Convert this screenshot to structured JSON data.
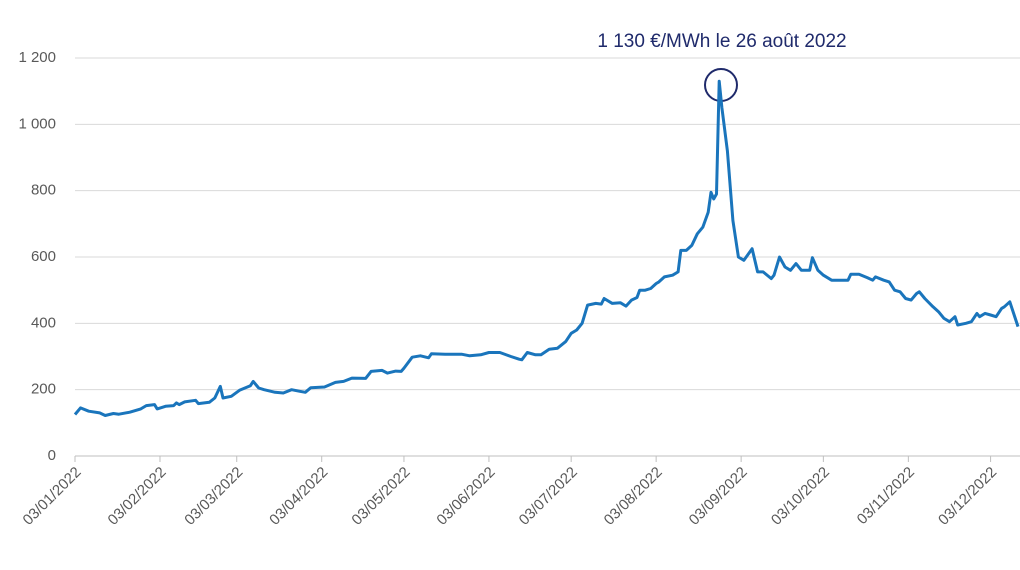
{
  "chart_data": {
    "type": "line",
    "annotation": "1 130 €/MWh le 26 août 2022",
    "x": [
      "2022-01-03",
      "2022-01-05",
      "2022-01-08",
      "2022-01-12",
      "2022-01-14",
      "2022-01-17",
      "2022-01-19",
      "2022-01-23",
      "2022-01-27",
      "2022-01-29",
      "2022-02-01",
      "2022-02-02",
      "2022-02-05",
      "2022-02-08",
      "2022-02-09",
      "2022-02-10",
      "2022-02-12",
      "2022-02-16",
      "2022-02-17",
      "2022-02-21",
      "2022-02-23",
      "2022-02-25",
      "2022-02-26",
      "2022-03-01",
      "2022-03-04",
      "2022-03-08",
      "2022-03-09",
      "2022-03-11",
      "2022-03-13",
      "2022-03-17",
      "2022-03-20",
      "2022-03-23",
      "2022-03-26",
      "2022-03-28",
      "2022-03-30",
      "2022-04-04",
      "2022-04-08",
      "2022-04-11",
      "2022-04-14",
      "2022-04-19",
      "2022-04-21",
      "2022-04-25",
      "2022-04-27",
      "2022-04-30",
      "2022-05-02",
      "2022-05-03",
      "2022-05-06",
      "2022-05-09",
      "2022-05-12",
      "2022-05-13",
      "2022-05-18",
      "2022-05-24",
      "2022-05-27",
      "2022-05-31",
      "2022-06-03",
      "2022-06-07",
      "2022-06-11",
      "2022-06-14",
      "2022-06-15",
      "2022-06-17",
      "2022-06-20",
      "2022-06-22",
      "2022-06-25",
      "2022-06-28",
      "2022-07-01",
      "2022-07-03",
      "2022-07-05",
      "2022-07-07",
      "2022-07-09",
      "2022-07-12",
      "2022-07-14",
      "2022-07-15",
      "2022-07-18",
      "2022-07-21",
      "2022-07-23",
      "2022-07-25",
      "2022-07-27",
      "2022-07-28",
      "2022-07-30",
      "2022-08-01",
      "2022-08-03",
      "2022-08-04",
      "2022-08-06",
      "2022-08-09",
      "2022-08-11",
      "2022-08-12",
      "2022-08-14",
      "2022-08-16",
      "2022-08-18",
      "2022-08-20",
      "2022-08-22",
      "2022-08-23",
      "2022-08-24",
      "2022-08-25",
      "2022-08-26",
      "2022-08-27",
      "2022-08-29",
      "2022-08-31",
      "2022-09-02",
      "2022-09-04",
      "2022-09-07",
      "2022-09-09",
      "2022-09-11",
      "2022-09-14",
      "2022-09-15",
      "2022-09-17",
      "2022-09-19",
      "2022-09-21",
      "2022-09-23",
      "2022-09-25",
      "2022-09-28",
      "2022-09-29",
      "2022-10-01",
      "2022-10-03",
      "2022-10-06",
      "2022-10-09",
      "2022-10-12",
      "2022-10-13",
      "2022-10-16",
      "2022-10-19",
      "2022-10-21",
      "2022-10-22",
      "2022-10-25",
      "2022-10-27",
      "2022-10-29",
      "2022-10-31",
      "2022-11-02",
      "2022-11-04",
      "2022-11-06",
      "2022-11-07",
      "2022-11-09",
      "2022-11-12",
      "2022-11-14",
      "2022-11-16",
      "2022-11-18",
      "2022-11-20",
      "2022-11-21",
      "2022-11-24",
      "2022-11-26",
      "2022-11-28",
      "2022-11-29",
      "2022-12-01",
      "2022-12-03",
      "2022-12-05",
      "2022-12-07",
      "2022-12-08",
      "2022-12-10",
      "2022-12-13"
    ],
    "series": [
      {
        "color": "#1a75bc",
        "values": [
          125,
          145,
          135,
          130,
          122,
          128,
          126,
          132,
          142,
          152,
          155,
          142,
          150,
          152,
          160,
          155,
          163,
          168,
          158,
          162,
          175,
          210,
          175,
          180,
          198,
          212,
          225,
          205,
          200,
          192,
          190,
          200,
          195,
          192,
          206,
          208,
          222,
          225,
          235,
          234,
          255,
          258,
          250,
          256,
          255,
          265,
          298,
          302,
          296,
          308,
          307,
          307,
          302,
          305,
          312,
          312,
          300,
          292,
          290,
          312,
          305,
          305,
          322,
          325,
          345,
          370,
          380,
          400,
          455,
          460,
          458,
          475,
          460,
          462,
          452,
          470,
          478,
          500,
          500,
          505,
          520,
          525,
          540,
          545,
          555,
          620,
          620,
          635,
          670,
          690,
          735,
          795,
          775,
          790,
          1130,
          1050,
          920,
          710,
          600,
          590,
          625,
          555,
          555,
          535,
          545,
          600,
          570,
          560,
          580,
          560,
          560,
          598,
          560,
          545,
          530,
          530,
          530,
          548,
          548,
          538,
          530,
          540,
          530,
          525,
          500,
          495,
          475,
          470,
          490,
          495,
          475,
          450,
          435,
          415,
          405,
          420,
          395,
          400,
          405,
          430,
          420,
          430,
          425,
          420,
          445,
          450,
          465,
          390
        ]
      }
    ],
    "xlim": [
      "2022-01-03",
      "2022-12-13"
    ],
    "xticks": [
      {
        "value": "2022-01-03",
        "label": "03/01/2022"
      },
      {
        "value": "2022-02-03",
        "label": "03/02/2022"
      },
      {
        "value": "2022-03-03",
        "label": "03/03/2022"
      },
      {
        "value": "2022-04-03",
        "label": "03/04/2022"
      },
      {
        "value": "2022-05-03",
        "label": "03/05/2022"
      },
      {
        "value": "2022-06-03",
        "label": "03/06/2022"
      },
      {
        "value": "2022-07-03",
        "label": "03/07/2022"
      },
      {
        "value": "2022-08-03",
        "label": "03/08/2022"
      },
      {
        "value": "2022-09-03",
        "label": "03/09/2022"
      },
      {
        "value": "2022-10-03",
        "label": "03/10/2022"
      },
      {
        "value": "2022-11-03",
        "label": "03/11/2022"
      },
      {
        "value": "2022-12-03",
        "label": "03/12/2022"
      }
    ],
    "ylim": [
      0,
      1200
    ],
    "yticks": [
      0,
      200,
      400,
      600,
      800,
      {
        "value": 1000,
        "label": "1 000"
      },
      {
        "value": 1200,
        "label": "1 200"
      }
    ],
    "grid": true
  }
}
